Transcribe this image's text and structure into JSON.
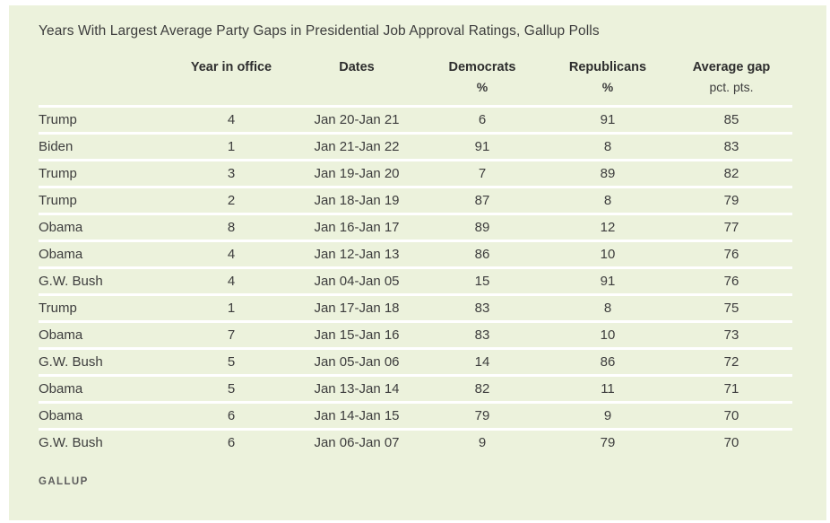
{
  "title": "Years With Largest Average Party Gaps in Presidential Job Approval Ratings, Gallup Polls",
  "footer": {
    "brand": "GALLUP"
  },
  "colors": {
    "card_bg": "#ecf2dc",
    "row_separator": "#ffffff",
    "title_text": "#3d3d3d",
    "header_text": "#2e2e2e",
    "cell_text": "#3d3d3d",
    "brand_text": "#5c5c5c",
    "page_bg": "#ffffff"
  },
  "chart_data": {
    "type": "table",
    "title": "Years With Largest Average Party Gaps in Presidential Job Approval Ratings, Gallup Polls",
    "source": "GALLUP",
    "columns": [
      {
        "label": "",
        "unit": "",
        "unit_bold": false,
        "key": "president"
      },
      {
        "label": "Year in office",
        "unit": "",
        "unit_bold": false,
        "key": "year-in-office"
      },
      {
        "label": "Dates",
        "unit": "",
        "unit_bold": false,
        "key": "dates"
      },
      {
        "label": "Democrats",
        "unit": "%",
        "unit_bold": true,
        "key": "democrats"
      },
      {
        "label": "Republicans",
        "unit": "%",
        "unit_bold": true,
        "key": "republicans"
      },
      {
        "label": "Average gap",
        "unit": "pct. pts.",
        "unit_bold": false,
        "key": "average-gap"
      }
    ],
    "rows": [
      [
        "Trump",
        "4",
        "Jan 20-Jan 21",
        "6",
        "91",
        "85"
      ],
      [
        "Biden",
        "1",
        "Jan 21-Jan 22",
        "91",
        "8",
        "83"
      ],
      [
        "Trump",
        "3",
        "Jan 19-Jan 20",
        "7",
        "89",
        "82"
      ],
      [
        "Trump",
        "2",
        "Jan 18-Jan 19",
        "87",
        "8",
        "79"
      ],
      [
        "Obama",
        "8",
        "Jan 16-Jan 17",
        "89",
        "12",
        "77"
      ],
      [
        "Obama",
        "4",
        "Jan 12-Jan 13",
        "86",
        "10",
        "76"
      ],
      [
        "G.W. Bush",
        "4",
        "Jan 04-Jan 05",
        "15",
        "91",
        "76"
      ],
      [
        "Trump",
        "1",
        "Jan 17-Jan 18",
        "83",
        "8",
        "75"
      ],
      [
        "Obama",
        "7",
        "Jan 15-Jan 16",
        "83",
        "10",
        "73"
      ],
      [
        "G.W. Bush",
        "5",
        "Jan 05-Jan 06",
        "14",
        "86",
        "72"
      ],
      [
        "Obama",
        "5",
        "Jan 13-Jan 14",
        "82",
        "11",
        "71"
      ],
      [
        "Obama",
        "6",
        "Jan 14-Jan 15",
        "79",
        "9",
        "70"
      ],
      [
        "G.W. Bush",
        "6",
        "Jan 06-Jan 07",
        "9",
        "79",
        "70"
      ]
    ]
  }
}
